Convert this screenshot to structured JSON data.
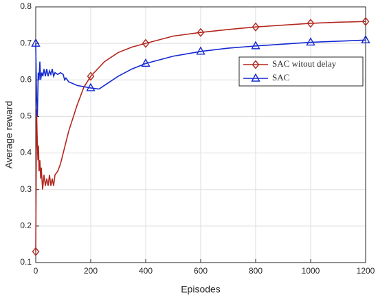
{
  "chart_data": {
    "type": "line",
    "xlabel": "Episodes",
    "ylabel": "Average reward",
    "xlim": [
      0,
      1200
    ],
    "xticks": [
      0,
      200,
      400,
      600,
      800,
      1000,
      1200
    ],
    "ylim": [
      0.1,
      0.8
    ],
    "yticks": [
      0.1,
      0.2,
      0.3,
      0.4,
      0.5,
      0.6,
      0.7,
      0.8
    ],
    "grid": true,
    "legend": "upper right",
    "series": [
      {
        "name": "SAC witout delay",
        "color": "#b3261e",
        "marker": "diamond",
        "x": [
          0,
          3,
          5,
          8,
          10,
          12,
          15,
          18,
          20,
          25,
          30,
          35,
          40,
          45,
          50,
          55,
          60,
          65,
          70,
          80,
          90,
          100,
          120,
          150,
          175,
          200,
          250,
          300,
          350,
          400,
          500,
          600,
          700,
          800,
          900,
          1000,
          1100,
          1200
        ],
        "values": [
          0.13,
          0.52,
          0.45,
          0.38,
          0.42,
          0.35,
          0.38,
          0.33,
          0.36,
          0.3,
          0.34,
          0.31,
          0.33,
          0.31,
          0.34,
          0.31,
          0.33,
          0.31,
          0.34,
          0.35,
          0.37,
          0.4,
          0.46,
          0.53,
          0.58,
          0.61,
          0.65,
          0.675,
          0.69,
          0.7,
          0.72,
          0.73,
          0.738,
          0.745,
          0.75,
          0.755,
          0.758,
          0.76
        ]
      },
      {
        "name": "SAC",
        "color": "#1428d2",
        "marker": "triangle",
        "x": [
          0,
          3,
          6,
          9,
          12,
          15,
          18,
          22,
          26,
          30,
          35,
          40,
          45,
          50,
          55,
          60,
          65,
          70,
          80,
          90,
          100,
          105,
          110,
          120,
          150,
          200,
          230,
          240,
          260,
          300,
          350,
          400,
          500,
          600,
          700,
          800,
          900,
          1000,
          1100,
          1200
        ],
        "values": [
          0.7,
          0.55,
          0.5,
          0.62,
          0.6,
          0.65,
          0.6,
          0.62,
          0.61,
          0.63,
          0.61,
          0.63,
          0.61,
          0.625,
          0.615,
          0.63,
          0.61,
          0.62,
          0.615,
          0.62,
          0.615,
          0.6,
          0.605,
          0.595,
          0.585,
          0.578,
          0.575,
          0.58,
          0.59,
          0.61,
          0.63,
          0.645,
          0.665,
          0.678,
          0.687,
          0.693,
          0.698,
          0.703,
          0.706,
          0.709
        ]
      }
    ]
  }
}
